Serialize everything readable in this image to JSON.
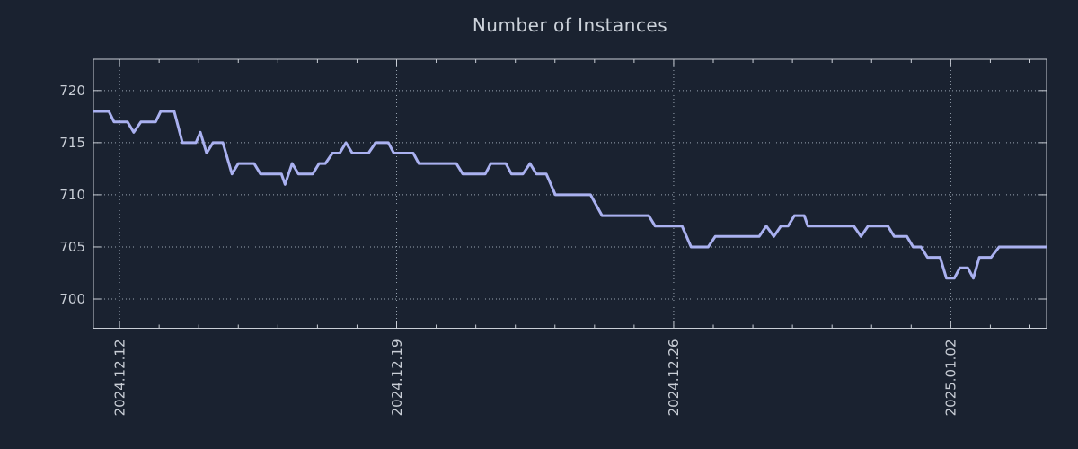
{
  "chart_data": {
    "type": "line",
    "title": "Number of Instances",
    "x_axis": {
      "kind": "time",
      "unit_note": "x values are days relative to 2024-12-12",
      "xlim": [
        -0.66,
        23.42
      ],
      "major_ticks": [
        {
          "x": 0,
          "label": "2024.12.12"
        },
        {
          "x": 7,
          "label": "2024.12.19"
        },
        {
          "x": 14,
          "label": "2024.12.26"
        },
        {
          "x": 21,
          "label": "2025.01.02"
        }
      ],
      "minor_tick_days": [
        1,
        2,
        3,
        4,
        5,
        6,
        8,
        9,
        10,
        11,
        12,
        13,
        15,
        16,
        17,
        18,
        19,
        20,
        22,
        23
      ],
      "label_rotation_deg": 90
    },
    "y_axis": {
      "ticks": [
        700,
        705,
        710,
        715,
        720
      ],
      "ylim": [
        697.2,
        723.0
      ]
    },
    "grid": {
      "style": "dotted",
      "x_majors": true,
      "y_majors": true
    },
    "legend": {
      "visible": false
    },
    "series": [
      {
        "name": "instances",
        "color": "#aab1f0",
        "points": [
          [
            -0.66,
            718
          ],
          [
            -0.27,
            718
          ],
          [
            -0.14,
            717
          ],
          [
            0.2,
            717
          ],
          [
            0.36,
            716
          ],
          [
            0.54,
            717
          ],
          [
            0.91,
            717
          ],
          [
            1.04,
            718
          ],
          [
            1.38,
            718
          ],
          [
            1.59,
            715
          ],
          [
            1.93,
            715
          ],
          [
            2.04,
            716
          ],
          [
            2.2,
            714
          ],
          [
            2.36,
            715
          ],
          [
            2.61,
            715
          ],
          [
            2.84,
            712
          ],
          [
            3.0,
            713
          ],
          [
            3.4,
            713
          ],
          [
            3.56,
            712
          ],
          [
            4.09,
            712
          ],
          [
            4.18,
            711
          ],
          [
            4.36,
            713
          ],
          [
            4.52,
            712
          ],
          [
            4.88,
            712
          ],
          [
            5.04,
            713
          ],
          [
            5.2,
            713
          ],
          [
            5.38,
            714
          ],
          [
            5.56,
            714
          ],
          [
            5.72,
            715
          ],
          [
            5.88,
            714
          ],
          [
            6.29,
            714
          ],
          [
            6.47,
            715
          ],
          [
            6.79,
            715
          ],
          [
            6.93,
            714
          ],
          [
            7.42,
            714
          ],
          [
            7.56,
            713
          ],
          [
            8.51,
            713
          ],
          [
            8.67,
            712
          ],
          [
            9.24,
            712
          ],
          [
            9.38,
            713
          ],
          [
            9.76,
            713
          ],
          [
            9.9,
            712
          ],
          [
            10.19,
            712
          ],
          [
            10.37,
            713
          ],
          [
            10.53,
            712
          ],
          [
            10.78,
            712
          ],
          [
            11.01,
            710
          ],
          [
            11.9,
            710
          ],
          [
            12.19,
            708
          ],
          [
            13.37,
            708
          ],
          [
            13.53,
            707
          ],
          [
            14.21,
            707
          ],
          [
            14.44,
            705
          ],
          [
            14.87,
            705
          ],
          [
            15.05,
            706
          ],
          [
            16.16,
            706
          ],
          [
            16.34,
            707
          ],
          [
            16.53,
            706
          ],
          [
            16.71,
            707
          ],
          [
            16.89,
            707
          ],
          [
            17.05,
            708
          ],
          [
            17.3,
            708
          ],
          [
            17.39,
            707
          ],
          [
            18.55,
            707
          ],
          [
            18.73,
            706
          ],
          [
            18.91,
            707
          ],
          [
            19.41,
            707
          ],
          [
            19.57,
            706
          ],
          [
            19.89,
            706
          ],
          [
            20.05,
            705
          ],
          [
            20.25,
            705
          ],
          [
            20.41,
            704
          ],
          [
            20.73,
            704
          ],
          [
            20.89,
            702
          ],
          [
            21.09,
            702
          ],
          [
            21.23,
            703
          ],
          [
            21.43,
            703
          ],
          [
            21.57,
            702
          ],
          [
            21.72,
            704
          ],
          [
            22.02,
            704
          ],
          [
            22.22,
            705
          ],
          [
            23.42,
            705
          ]
        ]
      }
    ],
    "colors": {
      "background": "#1a2230",
      "axis": "#c9ced6",
      "grid": "#9aa5b2",
      "text": "#c9ced6",
      "line": "#aab1f0"
    }
  }
}
